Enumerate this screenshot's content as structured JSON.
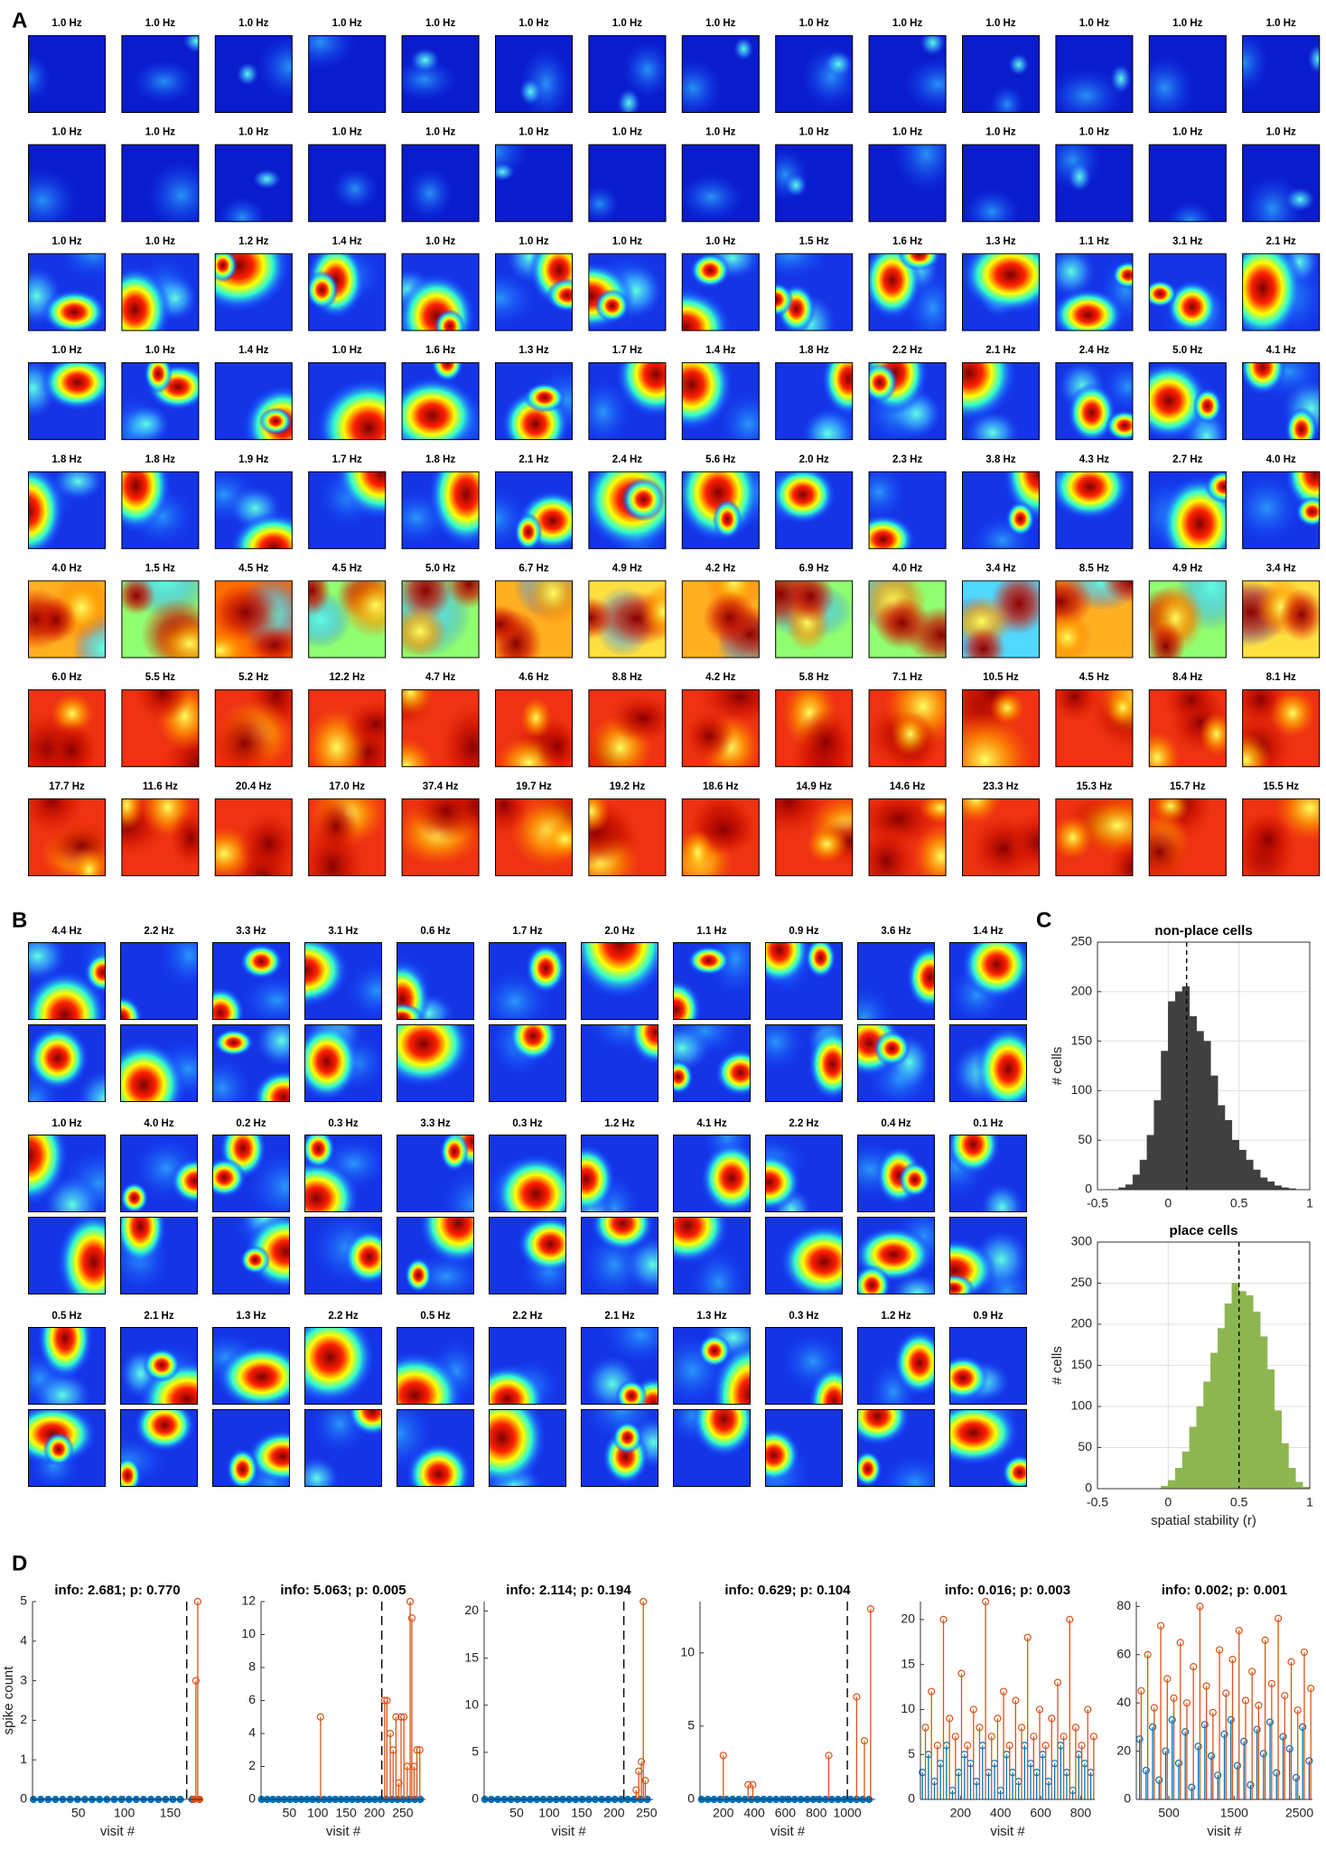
{
  "panel_a": {
    "letter": "A",
    "rates": [
      [
        "1.0 Hz",
        "1.0 Hz",
        "1.0 Hz",
        "1.0 Hz",
        "1.0 Hz",
        "1.0 Hz",
        "1.0 Hz",
        "1.0 Hz",
        "1.0 Hz",
        "1.0 Hz",
        "1.0 Hz",
        "1.0 Hz",
        "1.0 Hz",
        "1.0 Hz"
      ],
      [
        "1.0 Hz",
        "1.0 Hz",
        "1.0 Hz",
        "1.0 Hz",
        "1.0 Hz",
        "1.0 Hz",
        "1.0 Hz",
        "1.0 Hz",
        "1.0 Hz",
        "1.0 Hz",
        "1.0 Hz",
        "1.0 Hz",
        "1.0 Hz",
        "1.0 Hz"
      ],
      [
        "1.0 Hz",
        "1.0 Hz",
        "1.2 Hz",
        "1.4 Hz",
        "1.0 Hz",
        "1.0 Hz",
        "1.0 Hz",
        "1.0 Hz",
        "1.5 Hz",
        "1.6 Hz",
        "1.3 Hz",
        "1.1 Hz",
        "3.1 Hz",
        "2.1 Hz"
      ],
      [
        "1.0 Hz",
        "1.0 Hz",
        "1.4 Hz",
        "1.0 Hz",
        "1.6 Hz",
        "1.3 Hz",
        "1.7 Hz",
        "1.4 Hz",
        "1.8 Hz",
        "2.2 Hz",
        "2.1 Hz",
        "2.4 Hz",
        "5.0 Hz",
        "4.1 Hz"
      ],
      [
        "1.8 Hz",
        "1.8 Hz",
        "1.9 Hz",
        "1.7 Hz",
        "1.8 Hz",
        "2.1 Hz",
        "2.4 Hz",
        "5.6 Hz",
        "2.0 Hz",
        "2.3 Hz",
        "3.8 Hz",
        "4.3 Hz",
        "2.7 Hz",
        "4.0 Hz"
      ],
      [
        "4.0 Hz",
        "1.5 Hz",
        "4.5 Hz",
        "4.5 Hz",
        "5.0 Hz",
        "6.7 Hz",
        "4.9 Hz",
        "4.2 Hz",
        "6.9 Hz",
        "4.0 Hz",
        "3.4 Hz",
        "8.5 Hz",
        "4.9 Hz",
        "3.4 Hz"
      ],
      [
        "6.0 Hz",
        "5.5 Hz",
        "5.2 Hz",
        "12.2 Hz",
        "4.7 Hz",
        "4.6 Hz",
        "8.8 Hz",
        "4.2 Hz",
        "5.8 Hz",
        "7.1 Hz",
        "10.5 Hz",
        "4.5 Hz",
        "8.4 Hz",
        "8.1 Hz"
      ],
      [
        "17.7 Hz",
        "11.6 Hz",
        "20.4 Hz",
        "17.0 Hz",
        "37.4 Hz",
        "19.7 Hz",
        "19.2 Hz",
        "18.6 Hz",
        "14.9 Hz",
        "14.6 Hz",
        "23.3 Hz",
        "15.3 Hz",
        "15.7 Hz",
        "15.5 Hz"
      ]
    ]
  },
  "panel_b": {
    "letter": "B",
    "rates": [
      [
        "4.4 Hz",
        "2.2 Hz",
        "3.3 Hz",
        "3.1 Hz",
        "0.6 Hz",
        "1.7 Hz",
        "2.0 Hz",
        "1.1 Hz",
        "0.9 Hz",
        "3.6 Hz",
        "1.4 Hz"
      ],
      [
        "1.0 Hz",
        "4.0 Hz",
        "0.2 Hz",
        "0.3 Hz",
        "3.3 Hz",
        "0.3 Hz",
        "1.2 Hz",
        "4.1 Hz",
        "2.2 Hz",
        "0.4 Hz",
        "0.1 Hz"
      ],
      [
        "0.5 Hz",
        "2.1 Hz",
        "1.3 Hz",
        "2.2 Hz",
        "0.5 Hz",
        "2.2 Hz",
        "2.1 Hz",
        "1.3 Hz",
        "0.3 Hz",
        "1.2 Hz",
        "0.9 Hz"
      ]
    ]
  },
  "panel_c": {
    "letter": "C"
  },
  "panel_d": {
    "letter": "D"
  },
  "chart_data": [
    {
      "type": "histogram",
      "title": "non-place cells",
      "title_color": "#000000",
      "ylabel": "# cells",
      "color": "#404040",
      "bins": [
        -0.5,
        -0.45,
        -0.4,
        -0.35,
        -0.3,
        -0.25,
        -0.2,
        -0.15,
        -0.1,
        -0.05,
        0,
        0.05,
        0.1,
        0.15,
        0.2,
        0.25,
        0.3,
        0.35,
        0.4,
        0.45,
        0.5,
        0.55,
        0.6,
        0.65,
        0.7,
        0.75,
        0.8,
        0.85,
        0.9,
        0.95,
        1
      ],
      "values": [
        0,
        0,
        0,
        2,
        5,
        15,
        30,
        55,
        90,
        140,
        190,
        200,
        205,
        175,
        160,
        150,
        115,
        85,
        70,
        50,
        40,
        30,
        20,
        12,
        8,
        4,
        2,
        1,
        0,
        0
      ],
      "reference_line": 0.13,
      "xlim": [
        -0.5,
        1
      ],
      "xticks": [
        -0.5,
        0,
        0.5,
        1
      ],
      "ylim": [
        0,
        250
      ],
      "yticks": [
        0,
        50,
        100,
        150,
        200,
        250
      ],
      "grid": true
    },
    {
      "type": "histogram",
      "title": "place cells",
      "title_color": "#8db651",
      "ylabel": "# cells",
      "xlabel": "spatial stability (r)",
      "color": "#8db651",
      "bins": [
        -0.5,
        -0.45,
        -0.4,
        -0.35,
        -0.3,
        -0.25,
        -0.2,
        -0.15,
        -0.1,
        -0.05,
        0,
        0.05,
        0.1,
        0.15,
        0.2,
        0.25,
        0.3,
        0.35,
        0.4,
        0.45,
        0.5,
        0.55,
        0.6,
        0.65,
        0.7,
        0.75,
        0.8,
        0.85,
        0.9,
        0.95,
        1
      ],
      "values": [
        0,
        0,
        0,
        0,
        0,
        0,
        0,
        0,
        0,
        3,
        10,
        25,
        45,
        75,
        100,
        130,
        165,
        195,
        225,
        250,
        240,
        235,
        215,
        185,
        145,
        95,
        55,
        25,
        8,
        2
      ],
      "reference_line": 0.5,
      "xlim": [
        -0.5,
        1
      ],
      "xticks": [
        -0.5,
        0,
        0.5,
        1
      ],
      "ylim": [
        0,
        300
      ],
      "yticks": [
        0,
        50,
        100,
        150,
        200,
        250,
        300
      ],
      "grid": true
    },
    {
      "type": "stem",
      "title": "info: 2.681; p: 0.770",
      "ylabel": "spike count",
      "xlabel": "visit #",
      "reference_line": 168,
      "xlim": [
        0,
        185
      ],
      "xticks": [
        50,
        100,
        150
      ],
      "ylim": [
        0,
        5
      ],
      "yticks": [
        0,
        1,
        2,
        3,
        4,
        5
      ],
      "series": [
        {
          "color": "#0072bd",
          "x": [
            1,
            9,
            17,
            25,
            33,
            41,
            49,
            57,
            65,
            73,
            81,
            89,
            97,
            105,
            113,
            121,
            129,
            137,
            145,
            153,
            161,
            174
          ],
          "values": [
            0,
            0,
            0,
            0,
            0,
            0,
            0,
            0,
            0,
            0,
            0,
            0,
            0,
            0,
            0,
            0,
            0,
            0,
            0,
            0,
            0,
            0
          ]
        },
        {
          "color": "#d95319",
          "x": [
            176,
            178,
            180,
            182
          ],
          "values": [
            0,
            3,
            5,
            0
          ]
        }
      ]
    },
    {
      "type": "stem",
      "title": "info: 5.063; p: 0.005",
      "xlabel": "visit #",
      "reference_line": 213,
      "xlim": [
        0,
        290
      ],
      "xticks": [
        50,
        100,
        150,
        200,
        250
      ],
      "ylim": [
        0,
        12
      ],
      "yticks": [
        0,
        2,
        4,
        6,
        8,
        10,
        12
      ],
      "series": [
        {
          "color": "#0072bd",
          "x": [
            1,
            11,
            21,
            31,
            41,
            51,
            61,
            71,
            81,
            91,
            101,
            111,
            121,
            131,
            141,
            151,
            161,
            171,
            181,
            191,
            201,
            211,
            221,
            231,
            241,
            251,
            261,
            271,
            281
          ],
          "values": [
            0,
            0,
            0,
            0,
            0,
            0,
            0,
            0,
            0,
            0,
            0,
            0,
            0,
            0,
            0,
            0,
            0,
            0,
            0,
            0,
            0,
            0,
            0,
            0,
            0,
            0,
            0,
            0,
            0
          ]
        },
        {
          "color": "#d95319",
          "x": [
            105,
            218,
            222,
            228,
            233,
            238,
            243,
            247,
            252,
            258,
            263,
            266,
            270,
            275,
            280
          ],
          "values": [
            5,
            6,
            6,
            4,
            3,
            5,
            1,
            5,
            5,
            2,
            12,
            11,
            2,
            3,
            3
          ]
        }
      ]
    },
    {
      "type": "stem",
      "title": "info: 2.114; p: 0.194",
      "xlabel": "visit #",
      "reference_line": 215,
      "xlim": [
        0,
        260
      ],
      "xticks": [
        50,
        100,
        150,
        200,
        250
      ],
      "ylim": [
        0,
        21
      ],
      "yticks": [
        0,
        5,
        10,
        15,
        20
      ],
      "series": [
        {
          "color": "#0072bd",
          "x": [
            1,
            11,
            21,
            31,
            41,
            51,
            61,
            71,
            81,
            91,
            101,
            111,
            121,
            131,
            141,
            151,
            161,
            171,
            181,
            191,
            201,
            211,
            221,
            231,
            241,
            251
          ],
          "values": [
            0,
            0,
            0,
            0,
            0,
            0,
            0,
            0,
            0,
            0,
            0,
            0,
            0,
            0,
            0,
            0,
            0,
            0,
            0,
            0,
            0,
            0,
            0,
            0,
            0,
            0
          ]
        },
        {
          "color": "#d95319",
          "x": [
            234,
            238,
            242,
            245,
            248
          ],
          "values": [
            1,
            3,
            4,
            21,
            2
          ]
        }
      ]
    },
    {
      "type": "stem",
      "title": "info: 0.629; p: 0.104",
      "xlabel": "visit #",
      "reference_line": 1000,
      "xlim": [
        50,
        1180
      ],
      "xticks": [
        200,
        400,
        600,
        800,
        1000
      ],
      "ylim": [
        0,
        13.5
      ],
      "yticks": [
        0,
        5,
        10
      ],
      "series": [
        {
          "color": "#0072bd",
          "x": [
            60,
            100,
            140,
            180,
            220,
            260,
            300,
            340,
            380,
            420,
            460,
            500,
            540,
            580,
            620,
            660,
            700,
            740,
            780,
            820,
            860,
            900,
            940,
            980,
            1020,
            1060,
            1100,
            1140
          ],
          "values": [
            0,
            0,
            0,
            0,
            0,
            0,
            0,
            0,
            0,
            0,
            0,
            0,
            0,
            0,
            0,
            0,
            0,
            0,
            0,
            0,
            0,
            0,
            0,
            0,
            0,
            0,
            0,
            0
          ]
        },
        {
          "color": "#d95319",
          "x": [
            200,
            360,
            390,
            880,
            1060,
            1110,
            1150
          ],
          "values": [
            3,
            1,
            1,
            3,
            7,
            4,
            13
          ]
        }
      ]
    },
    {
      "type": "stem",
      "title": "info: 0.016; p: 0.003",
      "xlabel": "visit #",
      "xlim": [
        0,
        870
      ],
      "xticks": [
        200,
        400,
        600,
        800
      ],
      "ylim": [
        0,
        22
      ],
      "yticks": [
        0,
        5,
        10,
        15,
        20
      ],
      "series": [
        {
          "color": "#0072bd",
          "x": [
            10,
            40,
            70,
            100,
            130,
            160,
            190,
            220,
            250,
            280,
            310,
            340,
            370,
            400,
            430,
            460,
            490,
            520,
            550,
            580,
            610,
            640,
            670,
            700,
            730,
            760,
            790,
            820,
            850
          ],
          "values": [
            3,
            5,
            2,
            4,
            6,
            1,
            3,
            5,
            4,
            2,
            6,
            3,
            4,
            1,
            5,
            3,
            2,
            6,
            4,
            3,
            5,
            2,
            4,
            6,
            3,
            1,
            5,
            4,
            3
          ]
        },
        {
          "color": "#d95319",
          "x": [
            25,
            55,
            85,
            115,
            145,
            175,
            205,
            235,
            265,
            295,
            325,
            355,
            385,
            415,
            445,
            475,
            505,
            535,
            565,
            595,
            625,
            655,
            685,
            715,
            745,
            775,
            805,
            835,
            865
          ],
          "values": [
            8,
            12,
            6,
            20,
            9,
            7,
            14,
            6,
            10,
            8,
            22,
            7,
            9,
            12,
            6,
            11,
            8,
            18,
            7,
            10,
            6,
            9,
            13,
            7,
            20,
            8,
            6,
            10,
            7
          ]
        }
      ]
    },
    {
      "type": "stem",
      "title": "info: 0.002; p: 0.001",
      "xlabel": "visit #",
      "xlim": [
        0,
        2700
      ],
      "xticks": [
        500,
        1500,
        2500
      ],
      "ylim": [
        0,
        82
      ],
      "yticks": [
        0,
        20,
        40,
        60,
        80
      ],
      "series": [
        {
          "color": "#0072bd",
          "x": [
            50,
            150,
            250,
            350,
            450,
            550,
            650,
            750,
            850,
            950,
            1050,
            1150,
            1250,
            1350,
            1450,
            1550,
            1650,
            1750,
            1850,
            1950,
            2050,
            2150,
            2250,
            2350,
            2450,
            2550,
            2650
          ],
          "values": [
            25,
            12,
            30,
            8,
            20,
            33,
            15,
            28,
            5,
            22,
            31,
            18,
            10,
            27,
            33,
            14,
            24,
            6,
            29,
            19,
            32,
            11,
            26,
            21,
            9,
            30,
            16
          ]
        },
        {
          "color": "#d95319",
          "x": [
            75,
            175,
            275,
            375,
            475,
            575,
            675,
            775,
            875,
            975,
            1075,
            1175,
            1275,
            1375,
            1475,
            1575,
            1675,
            1775,
            1875,
            1975,
            2075,
            2175,
            2275,
            2375,
            2475,
            2575,
            2675
          ],
          "values": [
            45,
            60,
            38,
            72,
            50,
            42,
            65,
            40,
            55,
            80,
            47,
            36,
            62,
            44,
            58,
            70,
            41,
            53,
            39,
            66,
            48,
            75,
            43,
            57,
            37,
            61,
            46
          ]
        }
      ]
    }
  ]
}
